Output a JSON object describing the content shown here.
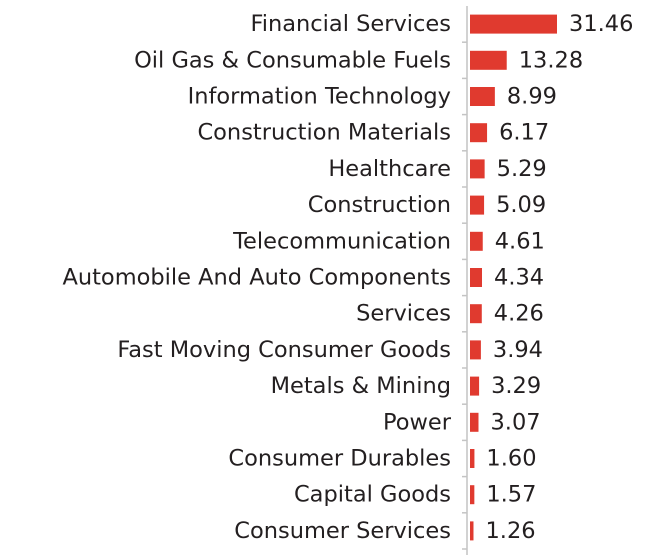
{
  "chart_data": {
    "type": "bar",
    "orientation": "horizontal",
    "title": "",
    "xlabel": "",
    "ylabel": "",
    "categories": [
      "Financial Services",
      "Oil Gas & Consumable Fuels",
      "Information Technology",
      "Construction Materials",
      "Healthcare",
      "Construction",
      "Telecommunication",
      "Automobile And Auto Components",
      "Services",
      "Fast Moving Consumer Goods",
      "Metals & Mining",
      "Power",
      "Consumer Durables",
      "Capital Goods",
      "Consumer Services"
    ],
    "values": [
      31.46,
      13.28,
      8.99,
      6.17,
      5.29,
      5.09,
      4.61,
      4.34,
      4.26,
      3.94,
      3.29,
      3.07,
      1.6,
      1.57,
      1.26
    ],
    "value_labels": [
      "31.46",
      "13.28",
      "8.99",
      "6.17",
      "5.29",
      "5.09",
      "4.61",
      "4.34",
      "4.26",
      "3.94",
      "3.29",
      "3.07",
      "1.60",
      "1.57",
      "1.26"
    ],
    "xlim": [
      0,
      31.46
    ],
    "grid": false,
    "colors": {
      "bar": "#e03a2f",
      "axis": "#c4c4c4",
      "text": "#231f20"
    }
  }
}
